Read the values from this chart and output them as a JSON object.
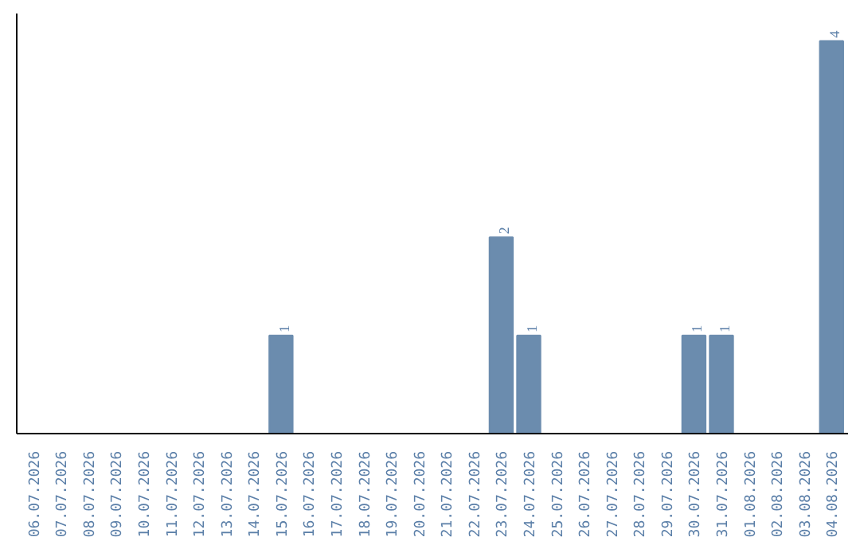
{
  "chart_data": {
    "type": "bar",
    "categories": [
      "06.07.2026",
      "07.07.2026",
      "08.07.2026",
      "09.07.2026",
      "10.07.2026",
      "11.07.2026",
      "12.07.2026",
      "13.07.2026",
      "14.07.2026",
      "15.07.2026",
      "16.07.2026",
      "17.07.2026",
      "18.07.2026",
      "19.07.2026",
      "20.07.2026",
      "21.07.2026",
      "22.07.2026",
      "23.07.2026",
      "24.07.2026",
      "25.07.2026",
      "26.07.2026",
      "27.07.2026",
      "28.07.2026",
      "29.07.2026",
      "30.07.2026",
      "31.07.2026",
      "01.08.2026",
      "02.08.2026",
      "03.08.2026",
      "04.08.2026"
    ],
    "values": [
      0,
      0,
      0,
      0,
      0,
      0,
      0,
      0,
      0,
      1,
      0,
      0,
      0,
      0,
      0,
      0,
      0,
      2,
      1,
      0,
      0,
      0,
      0,
      0,
      1,
      1,
      0,
      0,
      0,
      4
    ],
    "color": "#6b8cae",
    "value_labels": [
      null,
      null,
      null,
      null,
      null,
      null,
      null,
      null,
      null,
      "1",
      null,
      null,
      null,
      null,
      null,
      null,
      null,
      "2",
      "1",
      null,
      null,
      null,
      null,
      null,
      "1",
      "1",
      null,
      null,
      null,
      "4"
    ],
    "grid": false
  }
}
